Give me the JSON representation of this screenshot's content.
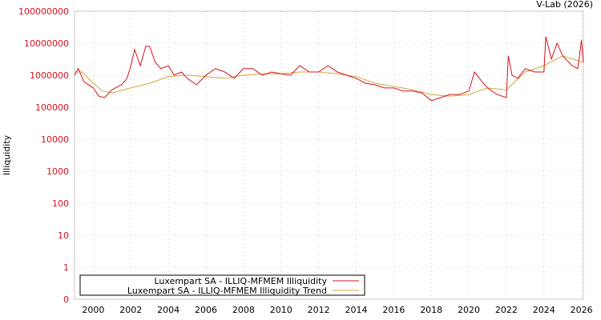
{
  "watermark": "V-Lab (2026)",
  "chart_data": {
    "type": "line",
    "title": "",
    "xlabel": "",
    "ylabel": "Illiquidity",
    "yscale": "log",
    "xlim": [
      1999.0,
      2026.1
    ],
    "ylim": [
      0,
      100000000
    ],
    "grid": true,
    "x_ticks": [
      "2000",
      "2002",
      "2004",
      "2006",
      "2008",
      "2010",
      "2012",
      "2014",
      "2016",
      "2018",
      "2020",
      "2022",
      "2024",
      "2026"
    ],
    "y_ticks": [
      "0",
      "1",
      "10",
      "100",
      "1000",
      "10000",
      "100000",
      "1000000",
      "10000000",
      "100000000"
    ],
    "legend_position": "bottom-left",
    "colors": {
      "series": "#d8101e",
      "trend": "#d4a640",
      "ytick": "#d8101e"
    },
    "series": [
      {
        "name": "Luxempart SA - ILLIQ-MFMEM Illiquidity",
        "x": [
          1999.0,
          1999.2,
          1999.5,
          2000.0,
          2000.3,
          2000.6,
          2001.0,
          2001.5,
          2001.8,
          2002.0,
          2002.2,
          2002.5,
          2002.8,
          2003.0,
          2003.3,
          2003.6,
          2004.0,
          2004.3,
          2004.7,
          2005.0,
          2005.5,
          2006.0,
          2006.5,
          2007.0,
          2007.5,
          2008.0,
          2008.5,
          2009.0,
          2009.5,
          2010.0,
          2010.5,
          2011.0,
          2011.5,
          2012.0,
          2012.5,
          2013.0,
          2013.5,
          2014.0,
          2014.5,
          2015.0,
          2015.5,
          2016.0,
          2016.5,
          2017.0,
          2017.5,
          2018.0,
          2018.5,
          2019.0,
          2019.5,
          2020.0,
          2020.3,
          2020.7,
          2021.0,
          2021.5,
          2022.0,
          2022.1,
          2022.3,
          2022.6,
          2023.0,
          2023.5,
          2024.0,
          2024.1,
          2024.4,
          2024.7,
          2025.0,
          2025.5,
          2025.8,
          2026.0,
          2026.1
        ],
        "values": [
          1000000,
          1600000,
          630000,
          400000,
          220000,
          200000,
          350000,
          500000,
          800000,
          2000000,
          6300000,
          2000000,
          8000000,
          7900000,
          2500000,
          1600000,
          2000000,
          1000000,
          1260000,
          800000,
          500000,
          1000000,
          1600000,
          1260000,
          800000,
          1600000,
          1600000,
          1000000,
          1260000,
          1100000,
          1000000,
          2000000,
          1260000,
          1260000,
          2000000,
          1260000,
          1000000,
          800000,
          560000,
          500000,
          400000,
          400000,
          320000,
          320000,
          280000,
          160000,
          200000,
          250000,
          250000,
          320000,
          1260000,
          630000,
          400000,
          250000,
          200000,
          4000000,
          1000000,
          800000,
          1600000,
          1260000,
          1260000,
          16000000,
          3200000,
          10000000,
          4000000,
          2000000,
          1600000,
          12600000,
          2500000
        ]
      },
      {
        "name": "Luxempart SA - ILLIQ-MFMEM Illiquidity Trend",
        "x": [
          1999.0,
          1999.4,
          2000.0,
          2000.5,
          2001.0,
          2002.0,
          2003.0,
          2004.0,
          2005.0,
          2006.0,
          2007.0,
          2008.0,
          2009.0,
          2010.0,
          2011.0,
          2012.0,
          2013.0,
          2014.0,
          2015.0,
          2016.0,
          2017.0,
          2018.0,
          2019.0,
          2020.0,
          2021.0,
          2022.0,
          2023.0,
          2024.0,
          2025.0,
          2026.1
        ],
        "values": [
          1260000,
          1260000,
          560000,
          320000,
          280000,
          400000,
          560000,
          900000,
          1000000,
          900000,
          800000,
          1000000,
          1100000,
          1100000,
          1260000,
          1260000,
          1100000,
          900000,
          560000,
          450000,
          350000,
          250000,
          220000,
          250000,
          400000,
          350000,
          1260000,
          2000000,
          4000000,
          2500000
        ]
      }
    ]
  }
}
